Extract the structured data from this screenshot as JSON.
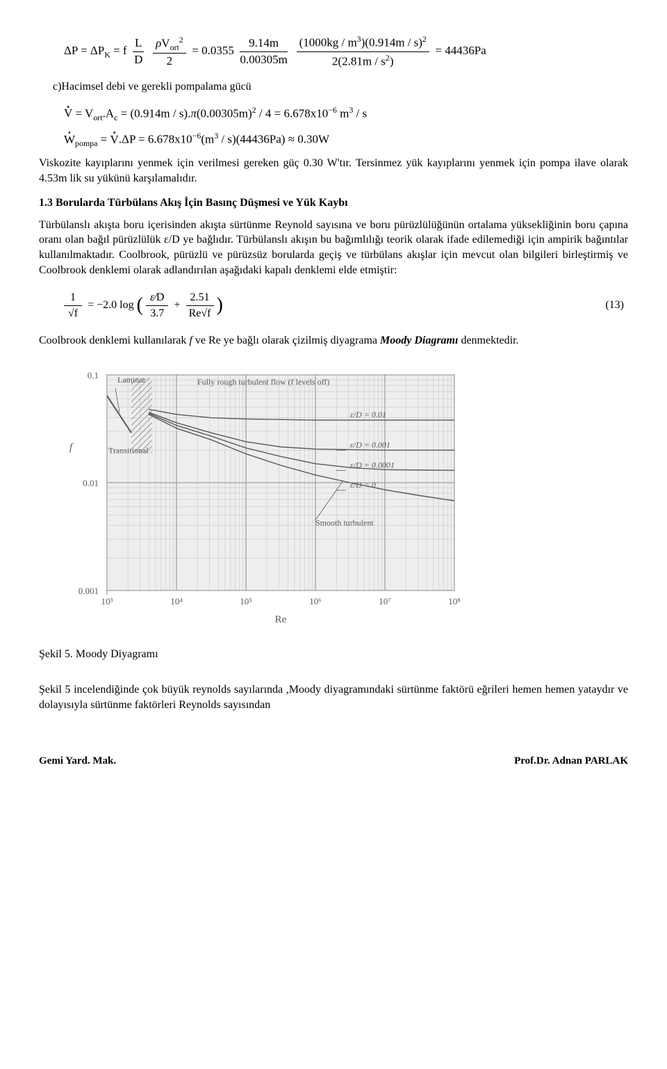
{
  "eq1_text": "ΔP = ΔP_K = f (L/D)(ρV_ort² / 2) = 0.0355 (9.14m / 0.00305m) · ((1000kg/m³)(0.914m/s)²) / (2(2.81m/s²)) = 44436 Pa",
  "subhead_c": "c)Hacimsel debi ve gerekli pompalama gücü",
  "eq2_text": "V̇ = V_ort · A_c = (0.914 m/s)·π·(0.00305 m)² / 4 = 6.678×10⁻⁶ m³/s",
  "eq3_text": "Ẇ_pompa = V̇ · ΔP = 6.678×10⁻⁶ (m³/s)(44436 Pa) ≈ 0.30 W",
  "para1": "Viskozite kayıplarını yenmek için verilmesi gereken güç 0.30 W'tır. Tersinmez yük kayıplarını yenmek için pompa ilave olarak 4.53m lik su yükünü karşılamalıdır.",
  "section_1_3": "1.3 Borularda Türbülans Akış İçin Basınç Düşmesi ve Yük Kaybı",
  "para2_a": "Türbülanslı akışta boru içerisinden akışta sürtünme Reynold sayısına ve boru pürüzlülüğünün ortalama yüksekliğinin boru çapına oranı olan bağıl pürüzlülük ε/D ye bağlıdır. Türbülanslı akışın bu bağımlılığı teorik olarak ifade edilemediği için ampirik bağıntılar kullanılmaktadır. Coolbrook, pürüzlü ve pürüzsüz borularda geçiş ve türbülans akışlar için mevcut olan bilgileri birleştirmiş ve Coolbrook denklemi olarak adlandırılan aşağıdaki kapalı denklemi elde etmiştir:",
  "eq13_text": "1/√f = −2.0 log( (ε/D)/3.7 + 2.51/(Re √f) )",
  "eq13_num": "(13)",
  "para3_pre": "Coolbrook denklemi kullanılarak ",
  "para3_fre": "f",
  "para3_mid": " ve Re ye bağlı olarak çizilmiş diyagrama ",
  "para3_moody": "Moody Diagramı",
  "para3_post": " denmektedir.",
  "caption5": "Şekil 5. Moody Diyagramı",
  "para4": "Şekil 5 incelendiğinde çok büyük reynolds sayılarında ,Moody diyagramındaki sürtünme faktörü eğrileri hemen hemen yataydır ve dolayısıyla sürtünme faktörleri Reynolds sayısından",
  "footer_left": "Gemi Yard. Mak.",
  "footer_right": "Prof.Dr. Adnan PARLAK",
  "moody": {
    "type": "log-log-line",
    "background_color": "#efeded",
    "text_color": "#595959",
    "axis_color": "#8a8a8a",
    "grid_color": "#c0c0c0",
    "curve_color": "#595959",
    "curve_width": 1.4,
    "font_size_axis": 13,
    "font_size_label": 15,
    "xlabel": "Re",
    "ylabel": "f",
    "x_ticks": [
      "10³",
      "10⁴",
      "10⁵",
      "10⁶",
      "10⁷",
      "10⁸"
    ],
    "x_log_range": [
      3,
      8
    ],
    "y_ticks": [
      "0.1",
      "0.01",
      "0.001"
    ],
    "y_log_range": [
      -3,
      -1
    ],
    "regions": {
      "laminar_label": "Laminar",
      "transitional_label": "Transitional",
      "rough_label": "Fully rough turbulent flow (f levels off)",
      "smooth_label": "Smooth turbulent"
    },
    "curve_labels": [
      {
        "text": "ε/D = 0.01",
        "at_logRe": 7.3,
        "f": 0.038
      },
      {
        "text": "ε/D = 0.001",
        "at_logRe": 7.3,
        "f": 0.02
      },
      {
        "text": "ε/D = 0.0001",
        "at_logRe": 7.3,
        "f": 0.013
      },
      {
        "text": "ε/D = 0",
        "at_logRe": 7.3,
        "f": 0.0085
      }
    ],
    "laminar_line": {
      "logRe": [
        3.0,
        3.35
      ],
      "f": [
        0.064,
        0.029
      ]
    },
    "transitional_box_logRe": [
      3.35,
      3.65
    ],
    "series": [
      {
        "name": "eD_0.01",
        "pts": [
          {
            "logRe": 3.6,
            "f": 0.048
          },
          {
            "logRe": 4.0,
            "f": 0.043
          },
          {
            "logRe": 4.5,
            "f": 0.04
          },
          {
            "logRe": 5.0,
            "f": 0.039
          },
          {
            "logRe": 6.0,
            "f": 0.038
          },
          {
            "logRe": 7.0,
            "f": 0.038
          },
          {
            "logRe": 8.0,
            "f": 0.038
          }
        ]
      },
      {
        "name": "eD_0.001",
        "pts": [
          {
            "logRe": 3.6,
            "f": 0.045
          },
          {
            "logRe": 4.0,
            "f": 0.036
          },
          {
            "logRe": 4.5,
            "f": 0.029
          },
          {
            "logRe": 5.0,
            "f": 0.024
          },
          {
            "logRe": 5.5,
            "f": 0.0215
          },
          {
            "logRe": 6.0,
            "f": 0.0205
          },
          {
            "logRe": 7.0,
            "f": 0.02
          },
          {
            "logRe": 8.0,
            "f": 0.02
          }
        ]
      },
      {
        "name": "eD_0.0001",
        "pts": [
          {
            "logRe": 3.6,
            "f": 0.044
          },
          {
            "logRe": 4.0,
            "f": 0.034
          },
          {
            "logRe": 4.5,
            "f": 0.027
          },
          {
            "logRe": 5.0,
            "f": 0.021
          },
          {
            "logRe": 5.5,
            "f": 0.0175
          },
          {
            "logRe": 6.0,
            "f": 0.015
          },
          {
            "logRe": 6.5,
            "f": 0.0138
          },
          {
            "logRe": 7.0,
            "f": 0.0132
          },
          {
            "logRe": 8.0,
            "f": 0.013
          }
        ]
      },
      {
        "name": "smooth",
        "pts": [
          {
            "logRe": 3.6,
            "f": 0.043
          },
          {
            "logRe": 4.0,
            "f": 0.032
          },
          {
            "logRe": 4.5,
            "f": 0.025
          },
          {
            "logRe": 5.0,
            "f": 0.0185
          },
          {
            "logRe": 5.5,
            "f": 0.0145
          },
          {
            "logRe": 6.0,
            "f": 0.0118
          },
          {
            "logRe": 6.5,
            "f": 0.01
          },
          {
            "logRe": 7.0,
            "f": 0.0086
          },
          {
            "logRe": 7.5,
            "f": 0.0076
          },
          {
            "logRe": 8.0,
            "f": 0.0068
          }
        ]
      }
    ]
  }
}
